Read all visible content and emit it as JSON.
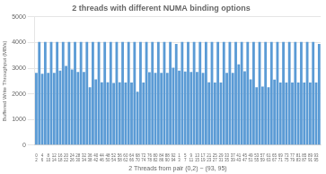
{
  "chart_data": {
    "type": "bar",
    "title": "2 threads with different NUMA binding options",
    "xlabel": "2 Threads from pair (0,2) ~ (93, 95)",
    "ylabel": "Buffered Write Throughput (MB/s)",
    "color": "#5b9bd5",
    "ylim": [
      0,
      5000
    ],
    "yticks": [
      0,
      1000,
      2000,
      3000,
      4000,
      5000
    ],
    "grid": true,
    "categories": [
      "0\n2",
      null,
      "4\n6",
      null,
      "8\n10",
      null,
      "12\n14",
      null,
      "16\n18",
      null,
      "20\n22",
      null,
      "24\n26",
      null,
      "28\n30",
      null,
      "32\n34",
      null,
      "36\n38",
      null,
      "40\n42",
      null,
      "44\n46",
      null,
      "48\n50",
      null,
      "52\n54",
      null,
      "56\n58",
      null,
      "60\n62",
      null,
      "64\n66",
      null,
      "68\n70",
      null,
      "72\n74",
      null,
      "76\n78",
      null,
      "80\n82",
      null,
      "84\n86",
      null,
      "88\n90",
      null,
      "92\n94",
      null,
      "1\n3",
      null,
      "5\n7",
      null,
      "9\n11",
      null,
      "13\n15",
      null,
      "17\n19",
      null,
      "21\n23",
      null,
      "25\n27",
      null,
      "29\n31",
      null,
      "33\n35",
      null,
      "37\n39",
      null,
      "41\n43",
      null,
      "45\n47",
      null,
      "49\n51",
      null,
      "53\n55",
      null,
      "57\n59",
      null,
      "61\n63",
      null,
      "65\n67",
      null,
      "69\n71",
      null,
      "73\n75",
      null,
      "77\n79",
      null,
      "81\n83",
      null,
      "85\n87",
      null,
      "89\n91",
      null,
      "93\n95",
      null
    ],
    "values": [
      2820,
      4020,
      2780,
      4020,
      2820,
      4020,
      2820,
      4020,
      2900,
      4020,
      3090,
      4020,
      2950,
      4020,
      2850,
      4020,
      2850,
      4020,
      2260,
      4020,
      2560,
      4020,
      2450,
      4020,
      2450,
      4020,
      2420,
      4020,
      2450,
      4020,
      2440,
      4020,
      2440,
      4020,
      2080,
      4020,
      2440,
      4020,
      2840,
      4020,
      2820,
      4020,
      2820,
      4020,
      2820,
      4020,
      3020,
      3940,
      2900,
      4020,
      2870,
      4020,
      2850,
      4020,
      2850,
      4020,
      2820,
      4020,
      2450,
      4020,
      2440,
      4020,
      2440,
      4020,
      2820,
      4020,
      2820,
      4020,
      3150,
      4020,
      2880,
      4020,
      2560,
      4020,
      2260,
      4020,
      2280,
      4020,
      2260,
      4020,
      2550,
      4020,
      2440,
      4020,
      2440,
      4020,
      2440,
      4020,
      2440,
      4020,
      2440,
      4020,
      2440,
      4020,
      2440,
      3940
    ]
  }
}
